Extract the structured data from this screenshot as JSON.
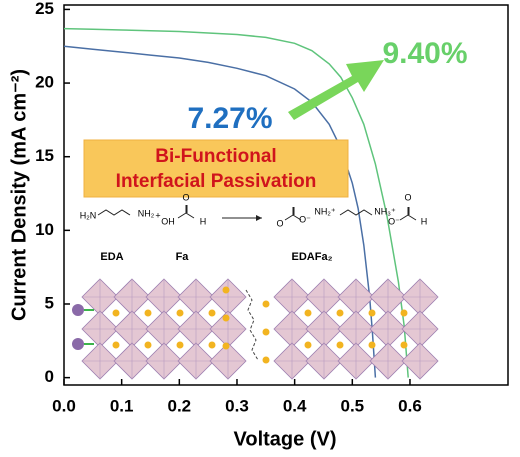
{
  "chart_data": {
    "type": "line",
    "x_label": "Voltage (V)",
    "y_label": "Current Density (mA cm⁻²)",
    "xlim": [
      0,
      0.77
    ],
    "ylim": [
      -0.5,
      25.3
    ],
    "xticks": [
      {
        "value": 0,
        "label": "0.0"
      },
      0.1,
      0.2,
      0.3,
      0.4,
      0.5,
      0.6
    ],
    "yticks": [
      0,
      5,
      10,
      15,
      20,
      25
    ],
    "series": [
      {
        "color": "#5fc47c",
        "x": [
          0,
          0.05,
          0.1,
          0.15,
          0.2,
          0.25,
          0.3,
          0.35,
          0.4,
          0.43,
          0.46,
          0.48,
          0.5,
          0.52,
          0.54,
          0.56,
          0.58,
          0.59,
          0.597
        ],
        "values": [
          23.7,
          23.65,
          23.6,
          23.55,
          23.5,
          23.4,
          23.3,
          23.1,
          22.7,
          22.2,
          21.3,
          20.4,
          19.0,
          17.2,
          14.5,
          11,
          6.5,
          3.5,
          0
        ]
      },
      {
        "color": "#4a6fa5",
        "x": [
          0,
          0.05,
          0.1,
          0.15,
          0.2,
          0.25,
          0.3,
          0.35,
          0.4,
          0.43,
          0.46,
          0.48,
          0.5,
          0.51,
          0.52,
          0.53,
          0.535,
          0.54
        ],
        "values": [
          22.5,
          22.3,
          22.1,
          21.9,
          21.7,
          21.4,
          21.0,
          20.5,
          19.6,
          18.7,
          17.2,
          15.6,
          13.2,
          11.5,
          9,
          5.5,
          3,
          0
        ]
      }
    ],
    "annotations": [
      "9.40%",
      "7.27%"
    ],
    "inset": {
      "title": [
        "Bi-Functional",
        "Interfacial Passivation"
      ],
      "labels": [
        "EDA",
        "Fa",
        "EDAFa₂"
      ],
      "atoms": [
        "H₂N",
        "NH₂",
        "+",
        "OH",
        "O",
        "H",
        "O",
        "O⁻",
        "NH₂⁺",
        "NH₃⁺",
        "O⁻",
        "O",
        "H"
      ]
    }
  }
}
